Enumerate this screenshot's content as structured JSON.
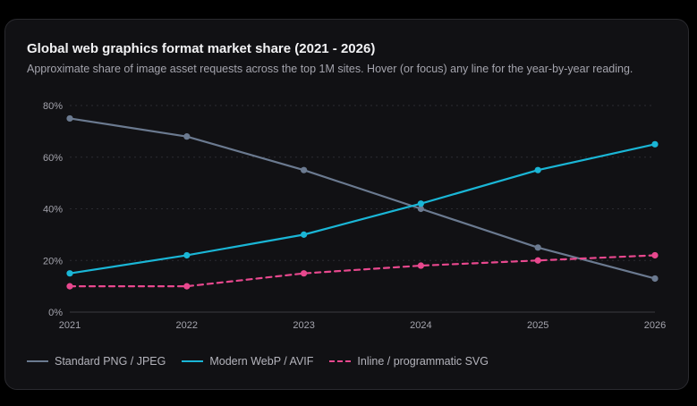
{
  "chart_data": {
    "type": "line",
    "title": "Global web graphics format market share (2021 - 2026)",
    "subtitle": "Approximate share of image asset requests across the top 1M sites. Hover (or focus) any line for the year-by-year reading.",
    "x": [
      "2021",
      "2022",
      "2023",
      "2024",
      "2025",
      "2026"
    ],
    "y_ticks": [
      "0%",
      "20%",
      "40%",
      "60%",
      "80%"
    ],
    "ylim": [
      0,
      80
    ],
    "grid": true,
    "legend_position": "bottom-left",
    "series": [
      {
        "name": "Standard PNG / JPEG",
        "values": [
          75,
          68,
          55,
          40,
          25,
          13
        ],
        "color": "#6b7a90",
        "dashed": false
      },
      {
        "name": "Modern WebP / AVIF",
        "values": [
          15,
          22,
          30,
          42,
          55,
          65
        ],
        "color": "#1ab6d6",
        "dashed": false
      },
      {
        "name": "Inline / programmatic SVG",
        "values": [
          10,
          10,
          15,
          18,
          20,
          22
        ],
        "color": "#e8488e",
        "dashed": true
      }
    ]
  }
}
